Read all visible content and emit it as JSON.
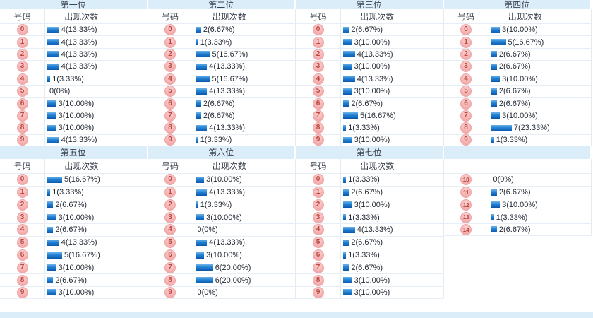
{
  "labels": {
    "number_header": "号码",
    "count_header": "出现次数"
  },
  "colors": {
    "section_title_bg": "#DCEDFA",
    "bar_gradient_top": "#6CB2E8",
    "bar_gradient_bottom": "#0A57AB",
    "badge_bg": "#F5ABAB",
    "badge_border": "#ECA6A6",
    "badge_text": "#B8473F",
    "row_border": "#E7EEF6",
    "label_text": "#242B36"
  },
  "sections": [
    {
      "title": "第一位",
      "numbers": [
        {
          "num": "0",
          "count": 4,
          "label": "4(13.33%)"
        },
        {
          "num": "1",
          "count": 4,
          "label": "4(13.33%)"
        },
        {
          "num": "2",
          "count": 4,
          "label": "4(13.33%)"
        },
        {
          "num": "3",
          "count": 4,
          "label": "4(13.33%)"
        },
        {
          "num": "4",
          "count": 1,
          "label": "1(3.33%)"
        },
        {
          "num": "5",
          "count": 0,
          "label": "0(0%)"
        },
        {
          "num": "6",
          "count": 3,
          "label": "3(10.00%)"
        },
        {
          "num": "7",
          "count": 3,
          "label": "3(10.00%)"
        },
        {
          "num": "8",
          "count": 3,
          "label": "3(10.00%)"
        },
        {
          "num": "9",
          "count": 4,
          "label": "4(13.33%)"
        }
      ]
    },
    {
      "title": "第二位",
      "numbers": [
        {
          "num": "0",
          "count": 2,
          "label": "2(6.67%)"
        },
        {
          "num": "1",
          "count": 1,
          "label": "1(3.33%)"
        },
        {
          "num": "2",
          "count": 5,
          "label": "5(16.67%)"
        },
        {
          "num": "3",
          "count": 4,
          "label": "4(13.33%)"
        },
        {
          "num": "4",
          "count": 5,
          "label": "5(16.67%)"
        },
        {
          "num": "5",
          "count": 4,
          "label": "4(13.33%)"
        },
        {
          "num": "6",
          "count": 2,
          "label": "2(6.67%)"
        },
        {
          "num": "7",
          "count": 2,
          "label": "2(6.67%)"
        },
        {
          "num": "8",
          "count": 4,
          "label": "4(13.33%)"
        },
        {
          "num": "9",
          "count": 1,
          "label": "1(3.33%)"
        }
      ]
    },
    {
      "title": "第三位",
      "numbers": [
        {
          "num": "0",
          "count": 2,
          "label": "2(6.67%)"
        },
        {
          "num": "1",
          "count": 3,
          "label": "3(10.00%)"
        },
        {
          "num": "2",
          "count": 4,
          "label": "4(13.33%)"
        },
        {
          "num": "3",
          "count": 3,
          "label": "3(10.00%)"
        },
        {
          "num": "4",
          "count": 4,
          "label": "4(13.33%)"
        },
        {
          "num": "5",
          "count": 3,
          "label": "3(10.00%)"
        },
        {
          "num": "6",
          "count": 2,
          "label": "2(6.67%)"
        },
        {
          "num": "7",
          "count": 5,
          "label": "5(16.67%)"
        },
        {
          "num": "8",
          "count": 1,
          "label": "1(3.33%)"
        },
        {
          "num": "9",
          "count": 3,
          "label": "3(10.00%)"
        }
      ]
    },
    {
      "title": "第四位",
      "numbers": [
        {
          "num": "0",
          "count": 3,
          "label": "3(10.00%)"
        },
        {
          "num": "1",
          "count": 5,
          "label": "5(16.67%)"
        },
        {
          "num": "2",
          "count": 2,
          "label": "2(6.67%)"
        },
        {
          "num": "3",
          "count": 2,
          "label": "2(6.67%)"
        },
        {
          "num": "4",
          "count": 3,
          "label": "3(10.00%)"
        },
        {
          "num": "5",
          "count": 2,
          "label": "2(6.67%)"
        },
        {
          "num": "6",
          "count": 2,
          "label": "2(6.67%)"
        },
        {
          "num": "7",
          "count": 3,
          "label": "3(10.00%)"
        },
        {
          "num": "8",
          "count": 7,
          "label": "7(23.33%)"
        },
        {
          "num": "9",
          "count": 1,
          "label": "1(3.33%)"
        }
      ]
    },
    {
      "title": "第五位",
      "numbers": [
        {
          "num": "0",
          "count": 5,
          "label": "5(16.67%)"
        },
        {
          "num": "1",
          "count": 1,
          "label": "1(3.33%)"
        },
        {
          "num": "2",
          "count": 2,
          "label": "2(6.67%)"
        },
        {
          "num": "3",
          "count": 3,
          "label": "3(10.00%)"
        },
        {
          "num": "4",
          "count": 2,
          "label": "2(6.67%)"
        },
        {
          "num": "5",
          "count": 4,
          "label": "4(13.33%)"
        },
        {
          "num": "6",
          "count": 5,
          "label": "5(16.67%)"
        },
        {
          "num": "7",
          "count": 3,
          "label": "3(10.00%)"
        },
        {
          "num": "8",
          "count": 2,
          "label": "2(6.67%)"
        },
        {
          "num": "9",
          "count": 3,
          "label": "3(10.00%)"
        }
      ]
    },
    {
      "title": "第六位",
      "numbers": [
        {
          "num": "0",
          "count": 3,
          "label": "3(10.00%)"
        },
        {
          "num": "1",
          "count": 4,
          "label": "4(13.33%)"
        },
        {
          "num": "2",
          "count": 1,
          "label": "1(3.33%)"
        },
        {
          "num": "3",
          "count": 3,
          "label": "3(10.00%)"
        },
        {
          "num": "4",
          "count": 0,
          "label": "0(0%)"
        },
        {
          "num": "5",
          "count": 4,
          "label": "4(13.33%)"
        },
        {
          "num": "6",
          "count": 3,
          "label": "3(10.00%)"
        },
        {
          "num": "7",
          "count": 6,
          "label": "6(20.00%)"
        },
        {
          "num": "8",
          "count": 6,
          "label": "6(20.00%)"
        },
        {
          "num": "9",
          "count": 0,
          "label": "0(0%)"
        }
      ]
    },
    {
      "title": "第七位",
      "numbers": [
        {
          "num": "0",
          "count": 1,
          "label": "1(3.33%)"
        },
        {
          "num": "1",
          "count": 2,
          "label": "2(6.67%)"
        },
        {
          "num": "2",
          "count": 3,
          "label": "3(10.00%)"
        },
        {
          "num": "3",
          "count": 1,
          "label": "1(3.33%)"
        },
        {
          "num": "4",
          "count": 4,
          "label": "4(13.33%)"
        },
        {
          "num": "5",
          "count": 2,
          "label": "2(6.67%)"
        },
        {
          "num": "6",
          "count": 1,
          "label": "1(3.33%)"
        },
        {
          "num": "7",
          "count": 2,
          "label": "2(6.67%)"
        },
        {
          "num": "8",
          "count": 3,
          "label": "3(10.00%)"
        },
        {
          "num": "9",
          "count": 3,
          "label": "3(10.00%)"
        }
      ]
    },
    {
      "title": "",
      "blank_chrome": true,
      "numbers": [
        {
          "num": "10",
          "count": 0,
          "label": "0(0%)"
        },
        {
          "num": "11",
          "count": 2,
          "label": "2(6.67%)"
        },
        {
          "num": "12",
          "count": 3,
          "label": "3(10.00%)"
        },
        {
          "num": "13",
          "count": 1,
          "label": "1(3.33%)"
        },
        {
          "num": "14",
          "count": 2,
          "label": "2(6.67%)"
        }
      ]
    }
  ]
}
